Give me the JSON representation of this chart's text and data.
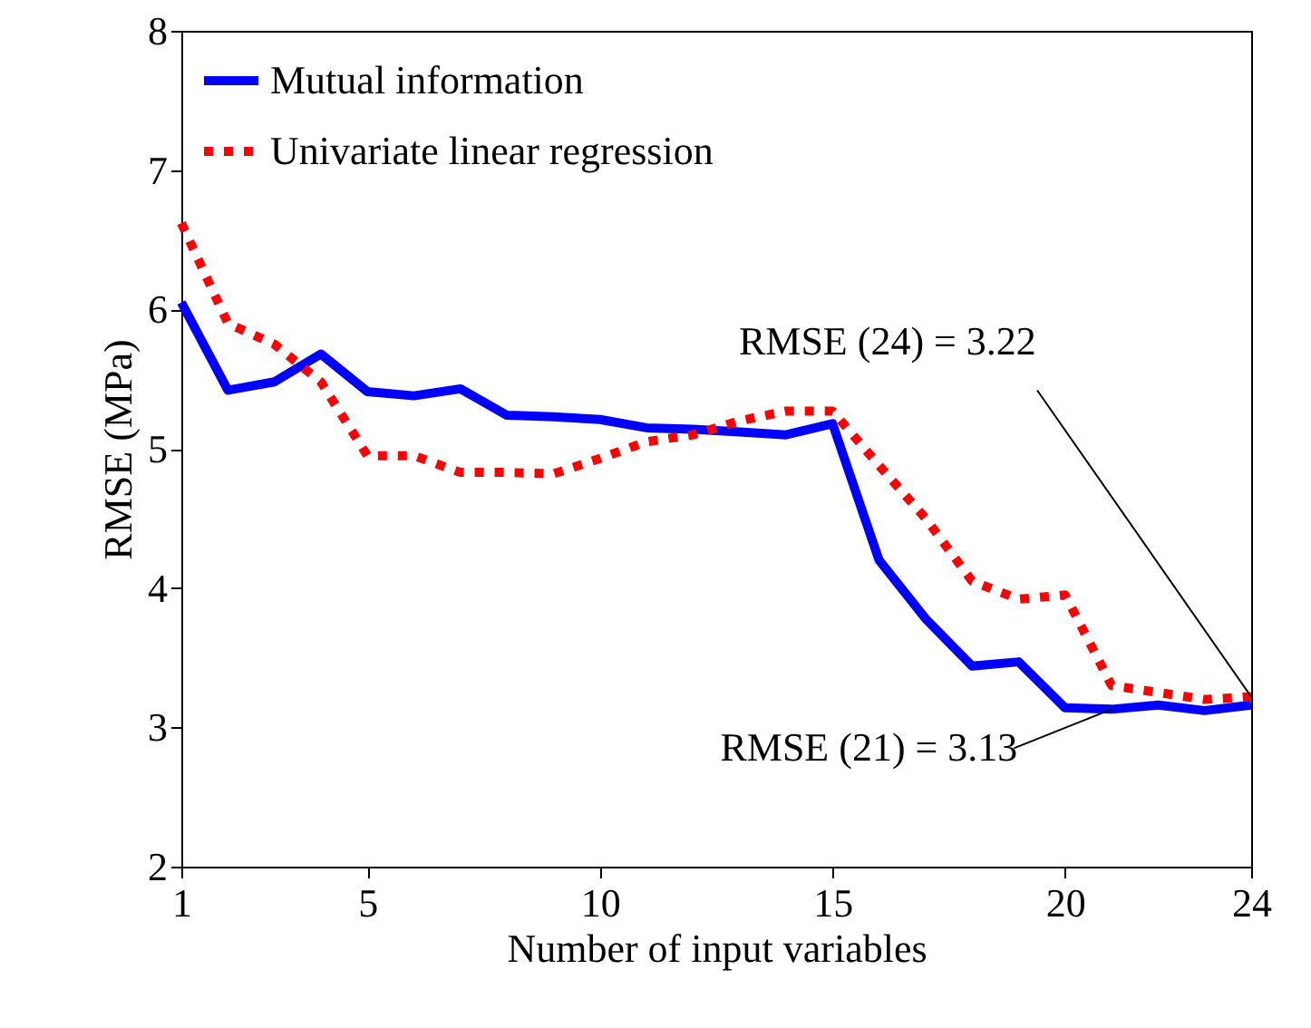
{
  "chart_data": {
    "type": "line",
    "xlabel": "Number of input variables",
    "ylabel": "RMSE (MPa)",
    "x": [
      1,
      2,
      3,
      4,
      5,
      6,
      7,
      8,
      9,
      10,
      11,
      12,
      13,
      14,
      15,
      16,
      17,
      18,
      19,
      20,
      21,
      22,
      23,
      24
    ],
    "series": [
      {
        "name": "Mutual information",
        "color": "#0000ff",
        "line_style": "solid",
        "values": [
          6.05,
          5.42,
          5.48,
          5.68,
          5.41,
          5.38,
          5.43,
          5.24,
          5.23,
          5.21,
          5.15,
          5.14,
          5.12,
          5.1,
          5.18,
          4.2,
          3.78,
          3.44,
          3.47,
          3.14,
          3.13,
          3.16,
          3.12,
          3.16
        ]
      },
      {
        "name": "Univariate linear regression",
        "color": "#ff0000",
        "line_style": "dotted",
        "values": [
          6.62,
          5.9,
          5.75,
          5.48,
          4.95,
          4.95,
          4.83,
          4.83,
          4.82,
          4.93,
          5.05,
          5.1,
          5.2,
          5.27,
          5.27,
          4.88,
          4.5,
          4.05,
          3.92,
          3.95,
          3.3,
          3.25,
          3.2,
          3.22
        ]
      }
    ],
    "xlim": [
      1,
      24
    ],
    "xticks": [
      1,
      5,
      10,
      15,
      20,
      24
    ],
    "ylim": [
      2,
      8
    ],
    "yticks": [
      2,
      3,
      4,
      5,
      6,
      7,
      8
    ],
    "grid": false,
    "legend": "top left",
    "marker": "none",
    "annotations": [
      {
        "text": "RMSE (24)  = 3.22",
        "x": 24,
        "y": 3.22
      },
      {
        "text": "RMSE (21)  = 3.13",
        "x": 21,
        "y": 3.13
      }
    ]
  }
}
